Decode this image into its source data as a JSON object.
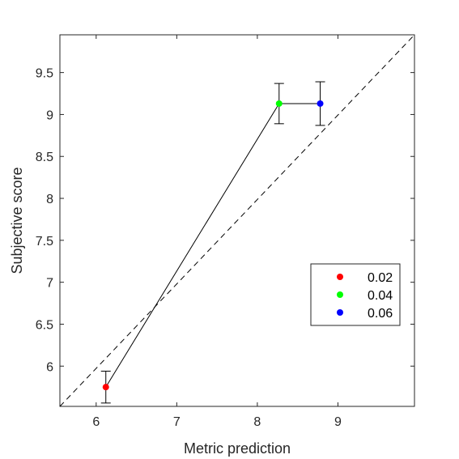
{
  "chart_data": {
    "type": "scatter",
    "xlabel": "Metric prediction",
    "ylabel": "Subjective score",
    "xlim": [
      5.55,
      9.95
    ],
    "ylim": [
      5.52,
      9.95
    ],
    "x_ticks": [
      6,
      7,
      8,
      9
    ],
    "y_ticks": [
      6,
      6.5,
      7,
      7.5,
      8,
      8.5,
      9,
      9.5
    ],
    "x_tick_labels": [
      "6",
      "7",
      "8",
      "9"
    ],
    "y_tick_labels": [
      "6",
      "6.5",
      "7",
      "7.5",
      "8",
      "8.5",
      "9",
      "9.5"
    ],
    "grid": false,
    "legend_position": "right-middle",
    "reference_line": {
      "style": "dashed",
      "from": [
        5.55,
        5.52
      ],
      "to": [
        9.95,
        9.95
      ]
    },
    "connecting_line": true,
    "series": [
      {
        "name": "0.02",
        "color": "#ff0000",
        "x": 6.12,
        "y": 5.75,
        "error_low": 5.56,
        "error_high": 5.94
      },
      {
        "name": "0.04",
        "color": "#00ff00",
        "x": 8.27,
        "y": 9.13,
        "error_low": 8.89,
        "error_high": 9.37
      },
      {
        "name": "0.06",
        "color": "#0000ff",
        "x": 8.78,
        "y": 9.13,
        "error_low": 8.87,
        "error_high": 9.39
      }
    ]
  }
}
